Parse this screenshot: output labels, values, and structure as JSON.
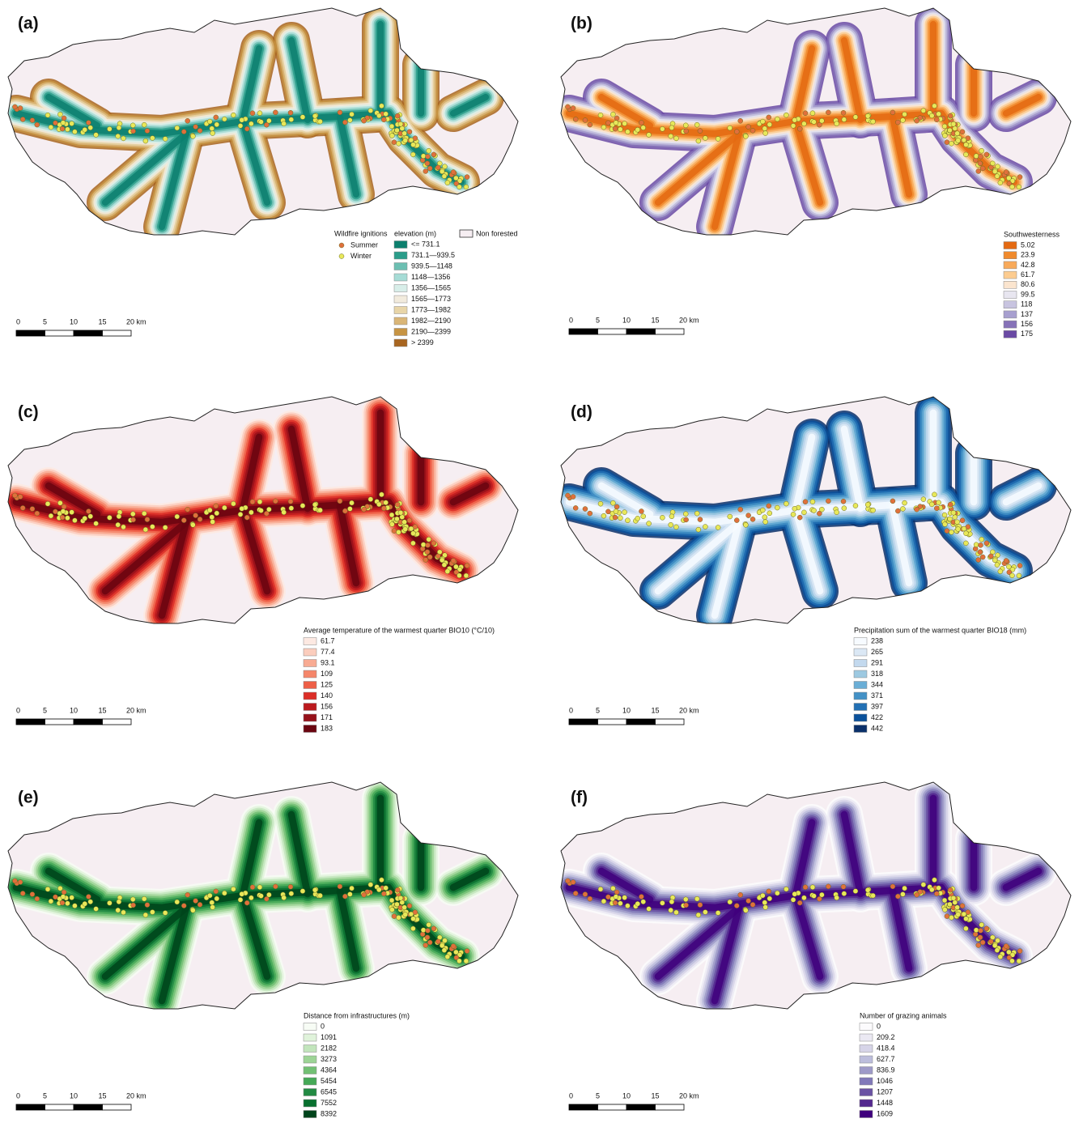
{
  "ignitions": {
    "title": "Wildfire ignitions",
    "items": [
      {
        "label": "Summer",
        "color": "#e0703c"
      },
      {
        "label": "Winter",
        "color": "#e8e85a"
      }
    ]
  },
  "non_forested": {
    "label": "Non forested",
    "color": "#f6eef2"
  },
  "panels": [
    {
      "label": "(a)",
      "scale": [
        "0",
        "5",
        "10",
        "15",
        "20 km"
      ],
      "legend": {
        "title": "elevation (m)",
        "items": [
          {
            "label": "<= 731.1",
            "color": "#0c7f6e"
          },
          {
            "label": "731.1—939.5",
            "color": "#2a9d8a"
          },
          {
            "label": "939.5—1148",
            "color": "#6cbfb2"
          },
          {
            "label": "1148—1356",
            "color": "#a6dcd6"
          },
          {
            "label": "1356—1565",
            "color": "#d8eee9"
          },
          {
            "label": "1565—1773",
            "color": "#f2ebdd"
          },
          {
            "label": "1773—1982",
            "color": "#e8d5a8"
          },
          {
            "label": "1982—2190",
            "color": "#dab677"
          },
          {
            "label": "2190—2399",
            "color": "#c79443"
          },
          {
            "label": "> 2399",
            "color": "#a86520"
          }
        ]
      }
    },
    {
      "label": "(b)",
      "scale": [
        "0",
        "5",
        "10",
        "15",
        "20 km"
      ],
      "legend": {
        "title": "Southwesterness",
        "items": [
          {
            "label": "5.02",
            "color": "#e46a12"
          },
          {
            "label": "23.9",
            "color": "#f08a2c"
          },
          {
            "label": "42.8",
            "color": "#f8aa5a"
          },
          {
            "label": "61.7",
            "color": "#fccc90"
          },
          {
            "label": "80.6",
            "color": "#fbe5cf"
          },
          {
            "label": "99.5",
            "color": "#e8e6f0"
          },
          {
            "label": "118",
            "color": "#c8c4e0"
          },
          {
            "label": "137",
            "color": "#a79fcf"
          },
          {
            "label": "156",
            "color": "#8672b8"
          },
          {
            "label": "175",
            "color": "#6a4aa4"
          }
        ]
      }
    },
    {
      "label": "(c)",
      "scale": [
        "0",
        "5",
        "10",
        "15",
        "20 km"
      ],
      "legend": {
        "title": "Average temperature of the warmest quarter BIO10 (°C/10)",
        "items": [
          {
            "label": "61.7",
            "color": "#fde9e2"
          },
          {
            "label": "77.4",
            "color": "#fbcdbd"
          },
          {
            "label": "93.1",
            "color": "#f8ab93"
          },
          {
            "label": "109",
            "color": "#f5866a"
          },
          {
            "label": "125",
            "color": "#ee5f47"
          },
          {
            "label": "140",
            "color": "#dc2e27"
          },
          {
            "label": "156",
            "color": "#bb1a1e"
          },
          {
            "label": "171",
            "color": "#96111a"
          },
          {
            "label": "183",
            "color": "#6a0510"
          }
        ]
      }
    },
    {
      "label": "(d)",
      "scale": [
        "0",
        "5",
        "10",
        "15",
        "20 km"
      ],
      "legend": {
        "title": "Precipitation sum of the warmest quarter BIO18 (mm)",
        "items": [
          {
            "label": "238",
            "color": "#f7fbff"
          },
          {
            "label": "265",
            "color": "#dbe8f5"
          },
          {
            "label": "291",
            "color": "#c3d9ee"
          },
          {
            "label": "318",
            "color": "#9dc9e1"
          },
          {
            "label": "344",
            "color": "#6aaed6"
          },
          {
            "label": "371",
            "color": "#4391c6"
          },
          {
            "label": "397",
            "color": "#2270b4"
          },
          {
            "label": "422",
            "color": "#0a519b"
          },
          {
            "label": "442",
            "color": "#0a306a"
          }
        ]
      }
    },
    {
      "label": "(e)",
      "scale": [
        "0",
        "5",
        "10",
        "15",
        "20 km"
      ],
      "legend": {
        "title": "Distance from infrastructures (m)",
        "items": [
          {
            "label": "0",
            "color": "#f7fcf5"
          },
          {
            "label": "1091",
            "color": "#e0f3db"
          },
          {
            "label": "2182",
            "color": "#c2e5bc"
          },
          {
            "label": "3273",
            "color": "#9dd496"
          },
          {
            "label": "4364",
            "color": "#72c074"
          },
          {
            "label": "5454",
            "color": "#45a957"
          },
          {
            "label": "6545",
            "color": "#228a43"
          },
          {
            "label": "7552",
            "color": "#08702f"
          },
          {
            "label": "8392",
            "color": "#00441b"
          }
        ]
      }
    },
    {
      "label": "(f)",
      "scale": [
        "0",
        "5",
        "10",
        "15",
        "20 km"
      ],
      "legend": {
        "title": "Number of grazing animals",
        "items": [
          {
            "label": "0",
            "color": "#fcfbfd"
          },
          {
            "label": "209.2",
            "color": "#ebe9f3"
          },
          {
            "label": "418.4",
            "color": "#d6d4e8"
          },
          {
            "label": "627.7",
            "color": "#bcbddc"
          },
          {
            "label": "836.9",
            "color": "#9e9ac8"
          },
          {
            "label": "1046",
            "color": "#8179b9"
          },
          {
            "label": "1207",
            "color": "#6a52a3"
          },
          {
            "label": "1448",
            "color": "#54288f"
          },
          {
            "label": "1609",
            "color": "#3f007d"
          }
        ]
      }
    }
  ]
}
